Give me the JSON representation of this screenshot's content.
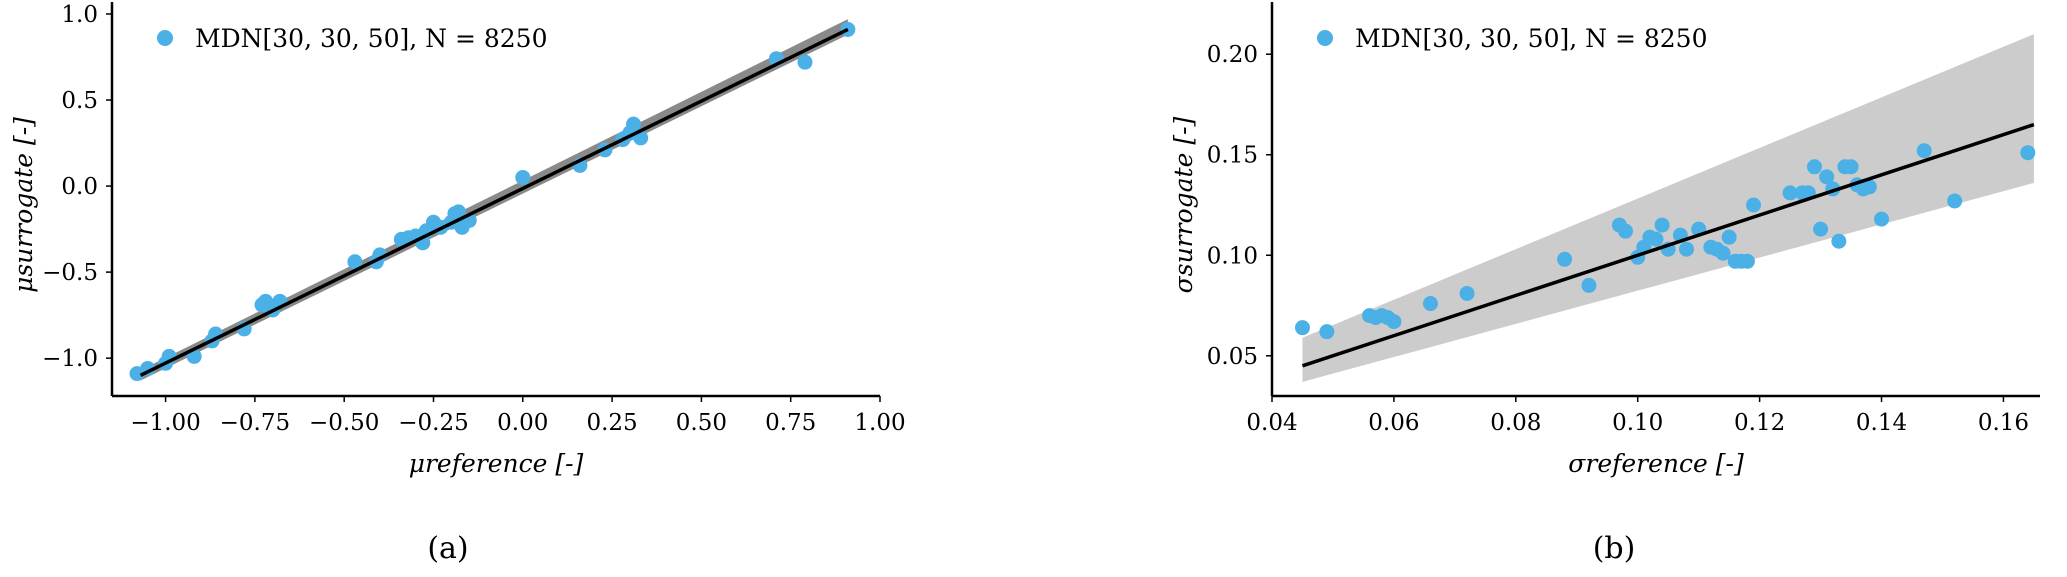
{
  "chart_data": [
    {
      "type": "scatter",
      "caption": "(a)",
      "xlabel": "μreference [-]",
      "ylabel": "μsurrogate [-]",
      "xlim": [
        -1.15,
        1.0
      ],
      "ylim": [
        -1.22,
        1.0
      ],
      "xticks": [
        -1.0,
        -0.75,
        -0.5,
        -0.25,
        0.0,
        0.25,
        0.5,
        0.75,
        1.0
      ],
      "xtick_labels": [
        "−1.00",
        "−0.75",
        "−0.50",
        "−0.25",
        "0.00",
        "0.25",
        "0.50",
        "0.75",
        "1.00"
      ],
      "yticks": [
        -1.0,
        -0.5,
        0.0,
        0.5,
        1.0
      ],
      "ytick_labels": [
        "−1.0",
        "−0.5",
        "0.0",
        "0.5",
        "1.0"
      ],
      "grid": false,
      "legend": {
        "placement": "top-left",
        "entries": [
          "MDN[30, 30, 50], N = 8250"
        ]
      },
      "colors": {
        "points": "#4ab0e6",
        "line": "#000000",
        "band": "#8a8a8a"
      },
      "line": {
        "x": [
          -1.07,
          0.91
        ],
        "y": [
          -1.1,
          0.91
        ]
      },
      "band": {
        "x": [
          -1.07,
          0.91
        ],
        "lower": [
          -1.13,
          0.88
        ],
        "upper": [
          -1.07,
          0.97
        ]
      },
      "points": {
        "x": [
          -1.08,
          -1.05,
          -1.0,
          -0.99,
          -0.92,
          -0.87,
          -0.86,
          -0.78,
          -0.73,
          -0.72,
          -0.71,
          -0.7,
          -0.68,
          -0.47,
          -0.41,
          -0.4,
          -0.34,
          -0.32,
          -0.3,
          -0.28,
          -0.27,
          -0.25,
          -0.23,
          -0.2,
          -0.19,
          -0.18,
          -0.17,
          -0.15,
          0.0,
          0.16,
          0.23,
          0.28,
          0.3,
          0.31,
          0.33,
          0.71,
          0.79,
          0.91
        ],
        "y": [
          -1.09,
          -1.06,
          -1.03,
          -0.99,
          -0.99,
          -0.9,
          -0.86,
          -0.83,
          -0.69,
          -0.67,
          -0.7,
          -0.72,
          -0.67,
          -0.44,
          -0.44,
          -0.4,
          -0.31,
          -0.3,
          -0.29,
          -0.33,
          -0.26,
          -0.21,
          -0.24,
          -0.21,
          -0.16,
          -0.15,
          -0.24,
          -0.2,
          0.05,
          0.12,
          0.21,
          0.27,
          0.31,
          0.36,
          0.28,
          0.74,
          0.72,
          0.91
        ]
      }
    },
    {
      "type": "scatter",
      "caption": "(b)",
      "xlabel": "σreference [-]",
      "ylabel": "σsurrogate [-]",
      "xlim": [
        0.04,
        0.166
      ],
      "ylim": [
        0.03,
        0.22
      ],
      "xticks": [
        0.04,
        0.06,
        0.08,
        0.1,
        0.12,
        0.14,
        0.16
      ],
      "xtick_labels": [
        "0.04",
        "0.06",
        "0.08",
        "0.10",
        "0.12",
        "0.14",
        "0.16"
      ],
      "yticks": [
        0.05,
        0.1,
        0.15,
        0.2
      ],
      "ytick_labels": [
        "0.05",
        "0.10",
        "0.15",
        "0.20"
      ],
      "grid": false,
      "legend": {
        "placement": "top-left",
        "entries": [
          "MDN[30, 30, 50], N = 8250"
        ]
      },
      "colors": {
        "points": "#4ab0e6",
        "line": "#000000",
        "band": "#cccccc"
      },
      "line": {
        "x": [
          0.045,
          0.165
        ],
        "y": [
          0.045,
          0.165
        ]
      },
      "band": {
        "x": [
          0.045,
          0.165
        ],
        "lower": [
          0.037,
          0.136
        ],
        "upper": [
          0.059,
          0.21
        ]
      },
      "points": {
        "x": [
          0.045,
          0.049,
          0.056,
          0.057,
          0.058,
          0.059,
          0.06,
          0.066,
          0.072,
          0.088,
          0.092,
          0.097,
          0.098,
          0.1,
          0.101,
          0.102,
          0.103,
          0.104,
          0.105,
          0.107,
          0.108,
          0.11,
          0.112,
          0.113,
          0.114,
          0.115,
          0.116,
          0.117,
          0.118,
          0.119,
          0.125,
          0.127,
          0.128,
          0.129,
          0.13,
          0.131,
          0.132,
          0.133,
          0.134,
          0.135,
          0.136,
          0.137,
          0.138,
          0.14,
          0.147,
          0.152,
          0.164
        ],
        "y": [
          0.064,
          0.062,
          0.07,
          0.069,
          0.07,
          0.069,
          0.067,
          0.076,
          0.081,
          0.098,
          0.085,
          0.115,
          0.112,
          0.099,
          0.104,
          0.109,
          0.108,
          0.115,
          0.103,
          0.11,
          0.103,
          0.113,
          0.104,
          0.103,
          0.101,
          0.109,
          0.097,
          0.097,
          0.097,
          0.125,
          0.131,
          0.131,
          0.131,
          0.144,
          0.113,
          0.139,
          0.133,
          0.107,
          0.144,
          0.144,
          0.135,
          0.133,
          0.134,
          0.118,
          0.152,
          0.127,
          0.151
        ]
      }
    }
  ]
}
